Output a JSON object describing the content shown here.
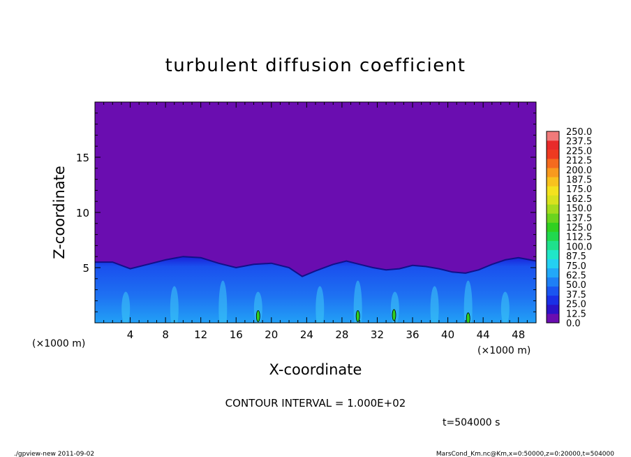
{
  "chart_data": {
    "type": "heatmap",
    "title": "turbulent diffusion coefficient",
    "xlabel": "X-coordinate",
    "ylabel": "Z-coordinate",
    "x_unit": "(×1000 m)",
    "y_unit": "(×1000 m)",
    "xlim": [
      0,
      50
    ],
    "ylim": [
      0,
      20
    ],
    "x_ticks": [
      4,
      8,
      12,
      16,
      20,
      24,
      28,
      32,
      36,
      40,
      44,
      48
    ],
    "y_ticks": [
      5,
      10,
      15
    ],
    "contour_interval_text": "CONTOUR INTERVAL = 1.000E+02",
    "time_text": "t=504000 s",
    "colorbar": {
      "levels": [
        "0.0",
        "12.5",
        "25.0",
        "37.5",
        "50.0",
        "62.5",
        "75.0",
        "87.5",
        "100.0",
        "112.5",
        "125.0",
        "137.5",
        "150.0",
        "162.5",
        "175.0",
        "187.5",
        "200.0",
        "212.5",
        "225.0",
        "237.5",
        "250.0"
      ],
      "colors": [
        "#6a0db0",
        "#2b12c8",
        "#1a2fe6",
        "#1a55f0",
        "#1e7ff5",
        "#22a8f8",
        "#24d0f2",
        "#20e6c8",
        "#1fe08c",
        "#20d84e",
        "#30d020",
        "#6ad41e",
        "#a4dc1e",
        "#d8e21e",
        "#f4e21e",
        "#f8c21e",
        "#f89a1e",
        "#f46a1e",
        "#ee3a20",
        "#e82a2a",
        "#f07a7a"
      ]
    },
    "boundary_layer_top_km": [
      [
        0,
        5.5
      ],
      [
        2,
        5.5
      ],
      [
        4,
        4.9
      ],
      [
        6,
        5.3
      ],
      [
        8,
        5.7
      ],
      [
        10,
        6.0
      ],
      [
        12,
        5.9
      ],
      [
        14,
        5.4
      ],
      [
        16,
        5.0
      ],
      [
        18,
        5.3
      ],
      [
        20,
        5.4
      ],
      [
        22,
        5.0
      ],
      [
        23.5,
        4.2
      ],
      [
        25,
        4.7
      ],
      [
        27,
        5.3
      ],
      [
        28.5,
        5.6
      ],
      [
        30,
        5.3
      ],
      [
        31.5,
        5.0
      ],
      [
        33,
        4.8
      ],
      [
        34.5,
        4.9
      ],
      [
        36,
        5.2
      ],
      [
        37.5,
        5.1
      ],
      [
        39,
        4.9
      ],
      [
        40.5,
        4.6
      ],
      [
        42,
        4.5
      ],
      [
        43.5,
        4.8
      ],
      [
        45,
        5.3
      ],
      [
        46.5,
        5.7
      ],
      [
        48,
        5.9
      ],
      [
        50,
        5.6
      ]
    ],
    "high_patches": [
      {
        "x": 18.5,
        "z": 0.6,
        "value": 100
      },
      {
        "x": 29.8,
        "z": 0.6,
        "value": 100
      },
      {
        "x": 33.9,
        "z": 0.7,
        "value": 100
      },
      {
        "x": 42.3,
        "z": 0.4,
        "value": 100
      }
    ]
  },
  "footer": {
    "left": "./gpview-new   2011-09-02",
    "right": "MarsCond_Km.nc@Km,x=0:50000,z=0:20000,t=504000"
  }
}
